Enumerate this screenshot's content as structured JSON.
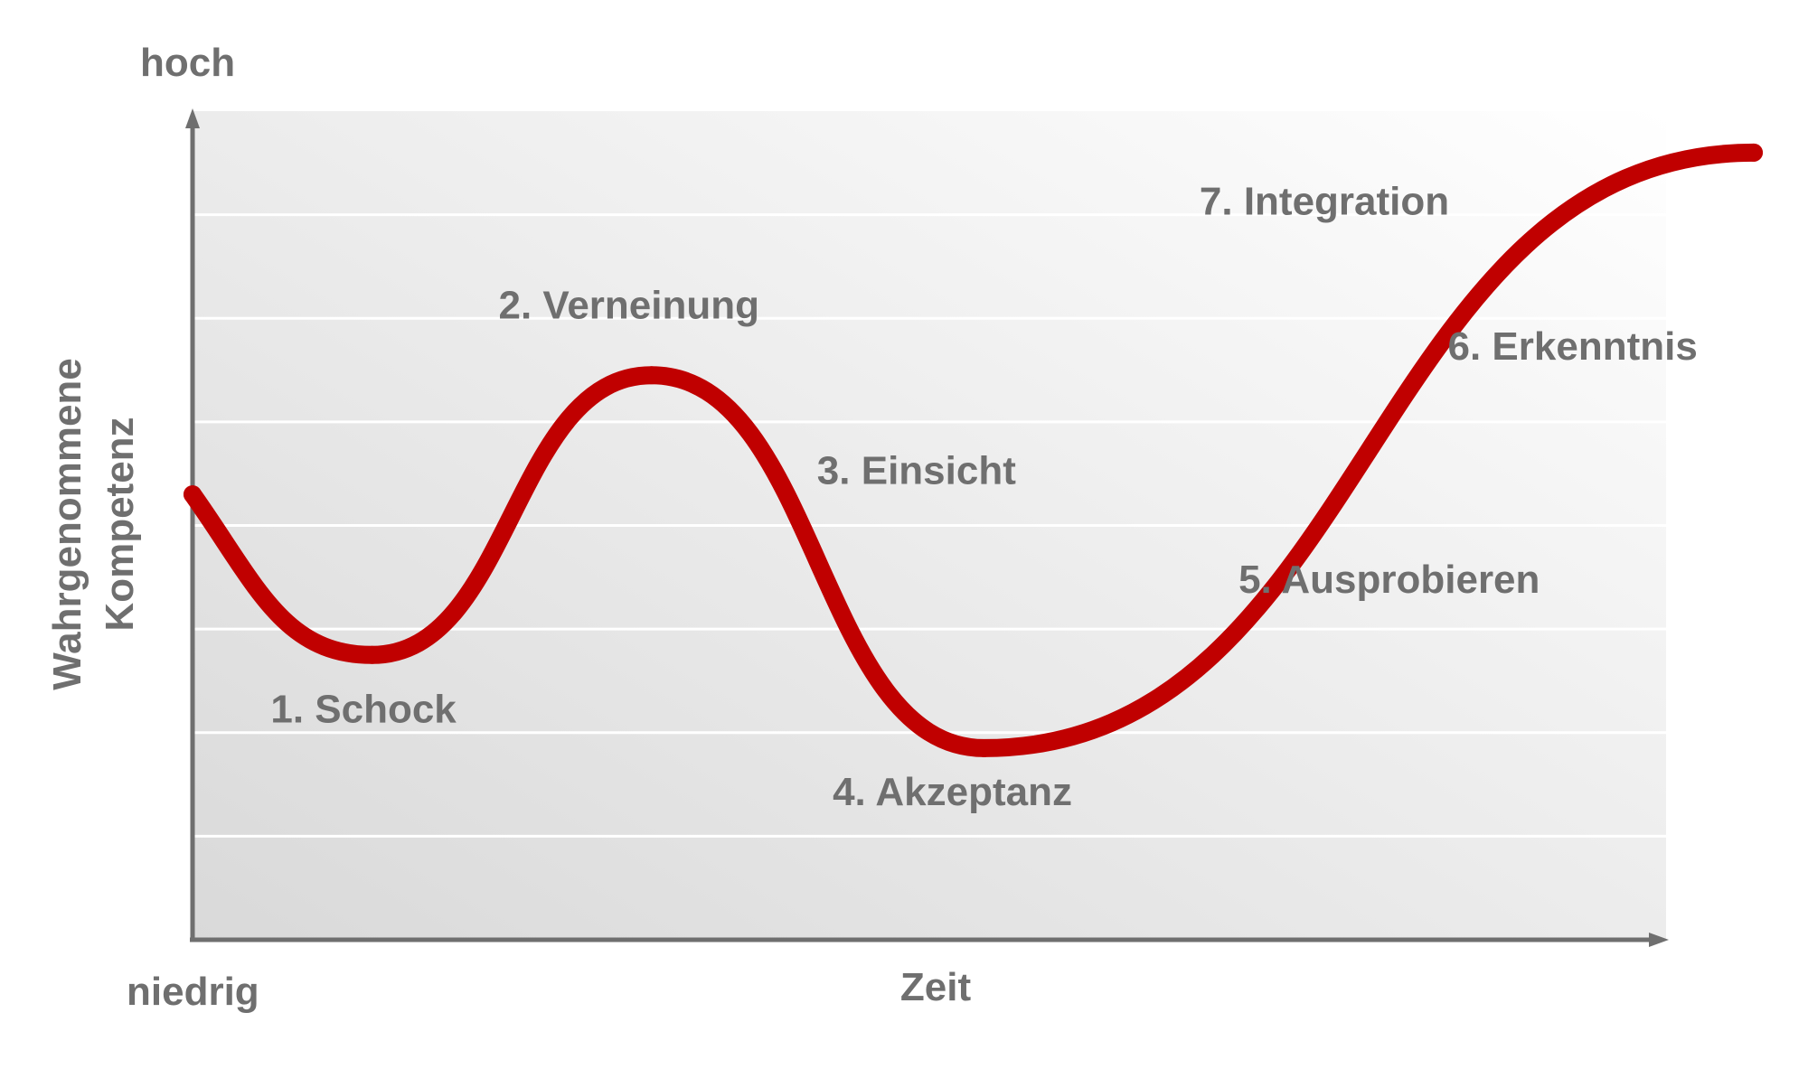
{
  "chart_data": {
    "type": "line",
    "title": "",
    "xlabel": "Zeit",
    "ylabel": "Wahrgenommene Kompetenz",
    "ylabel_lines": [
      "Wahrgenommene",
      "Kompetenz"
    ],
    "y_high_label": "hoch",
    "y_low_label": "niedrig",
    "xlim": [
      0,
      100
    ],
    "ylim": [
      0,
      8
    ],
    "grid": true,
    "gridlines": [
      1,
      2,
      3,
      4,
      5,
      6,
      7
    ],
    "series": [
      {
        "color": "#c00000",
        "x": [
          0,
          11.5,
          29.4,
          50.7,
          100
        ],
        "y": [
          4.3,
          2.75,
          5.45,
          1.85,
          7.6
        ]
      }
    ],
    "annotations": [
      {
        "text": "1. Schock",
        "x": 5.0,
        "y": 2.1
      },
      {
        "text": "2. Verneinung",
        "x": 19.6,
        "y": 6.0
      },
      {
        "text": "3. Einsicht",
        "x": 40.0,
        "y": 4.4
      },
      {
        "text": "4. Akzeptanz",
        "x": 41.0,
        "y": 1.3
      },
      {
        "text": "5. Ausprobieren",
        "x": 67.0,
        "y": 3.35
      },
      {
        "text": "6. Erkenntnis",
        "x": 80.4,
        "y": 5.6
      },
      {
        "text": "7. Integration",
        "x": 64.5,
        "y": 7.0
      }
    ]
  },
  "colors": {
    "curve": "#c00000",
    "text": "#6f6f6f",
    "axis": "#6f6f6f",
    "grid": "#ffffff"
  }
}
